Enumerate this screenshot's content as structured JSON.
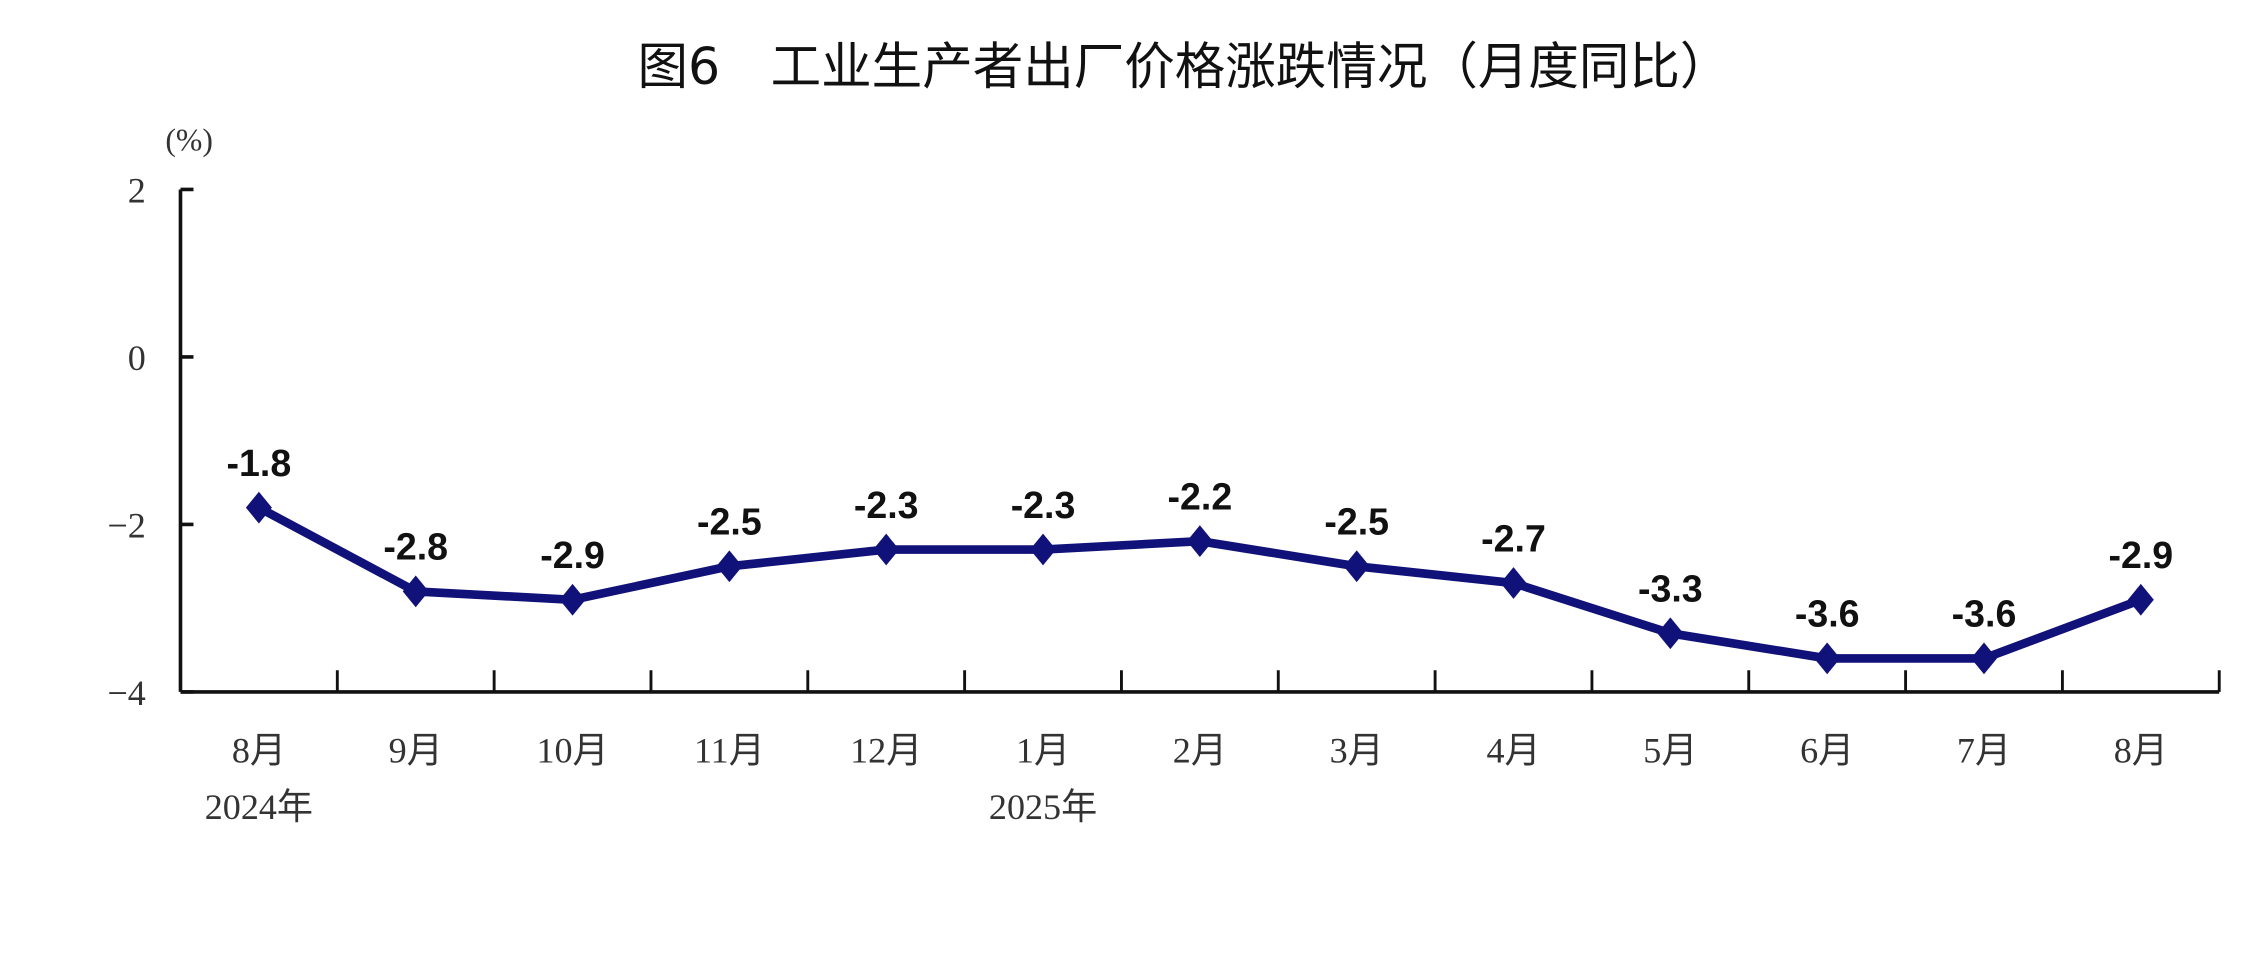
{
  "chart_data": {
    "type": "line",
    "title": "图6　工业生产者出厂价格涨跌情况（月度同比）",
    "ylabel": "(%)",
    "xlabel": "",
    "ylim": [
      -4,
      2
    ],
    "yticks": [
      "2",
      "0",
      "−2",
      "−4"
    ],
    "ytick_values": [
      2,
      0,
      -2,
      -4
    ],
    "categories": [
      "8月",
      "9月",
      "10月",
      "11月",
      "12月",
      "1月",
      "2月",
      "3月",
      "4月",
      "5月",
      "6月",
      "7月",
      "8月"
    ],
    "year_labels": [
      {
        "index": 0,
        "label": "2024年"
      },
      {
        "index": 5,
        "label": "2025年"
      }
    ],
    "series": [
      {
        "values": [
          -1.8,
          -2.8,
          -2.9,
          -2.5,
          -2.3,
          -2.3,
          -2.2,
          -2.5,
          -2.7,
          -3.3,
          -3.6,
          -3.6,
          -2.9
        ],
        "labels": [
          "-1.8",
          "-2.8",
          "-2.9",
          "-2.5",
          "-2.3",
          "-2.3",
          "-2.2",
          "-2.5",
          "-2.7",
          "-3.3",
          "-3.6",
          "-3.6",
          "-2.9"
        ],
        "color": "#11117a",
        "marker": "diamond"
      }
    ],
    "grid": false,
    "legend": "none"
  }
}
